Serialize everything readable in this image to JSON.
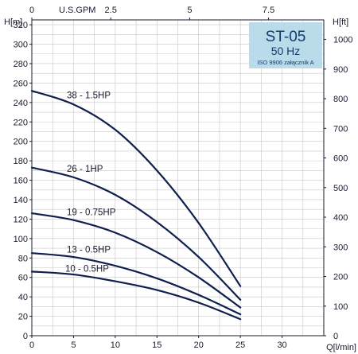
{
  "chart_data": {
    "type": "line",
    "title": "ST-05",
    "subtitle": "50 Hz",
    "note": "ISO 9906 załącznik A",
    "left_axis": {
      "label": "H[m]",
      "ticks": [
        0,
        20,
        40,
        60,
        80,
        100,
        120,
        140,
        160,
        180,
        200,
        220,
        240,
        260,
        280,
        300,
        320
      ],
      "range": [
        0,
        325
      ]
    },
    "right_axis": {
      "label": "H[ft]",
      "ticks": [
        0,
        100,
        200,
        300,
        400,
        500,
        600,
        700,
        800,
        900,
        1000
      ],
      "range": [
        0,
        1066
      ]
    },
    "bottom_axis": {
      "label": "Q[l/min]",
      "ticks": [
        0,
        5,
        10,
        15,
        20,
        25,
        30
      ],
      "range": [
        0,
        35
      ]
    },
    "top_axis": {
      "label": "U.S.GPM",
      "ticks": [
        0,
        2.5,
        5,
        7.5
      ],
      "tick_labels": [
        "0",
        "2.5",
        "5",
        "7.5"
      ],
      "range": [
        0,
        9.25
      ]
    },
    "grid": true,
    "colors": {
      "curve": "#0f1f4d",
      "grid": "#c8c8c8",
      "badge_fill": "#b9dbea",
      "badge_text": "#123a6b"
    },
    "series": [
      {
        "name": "38 - 1.5HP",
        "x": [
          0,
          5,
          10,
          15,
          20,
          25
        ],
        "y": [
          252,
          238,
          212,
          170,
          116,
          51
        ]
      },
      {
        "name": "26 - 1HP",
        "x": [
          0,
          5,
          10,
          15,
          20,
          25
        ],
        "y": [
          173,
          163,
          145,
          117,
          81,
          37
        ]
      },
      {
        "name": "19 - 0.75HP",
        "x": [
          0,
          5,
          10,
          15,
          20,
          25
        ],
        "y": [
          126,
          119,
          106,
          86,
          60,
          29
        ]
      },
      {
        "name": "13 - 0.5HP",
        "x": [
          0,
          5,
          10,
          15,
          20,
          25
        ],
        "y": [
          85,
          81,
          72,
          59,
          42,
          22
        ]
      },
      {
        "name": "10 - 0.5HP",
        "x": [
          0,
          5,
          10,
          15,
          20,
          25
        ],
        "y": [
          66,
          63,
          56,
          47,
          34,
          17
        ]
      }
    ]
  }
}
